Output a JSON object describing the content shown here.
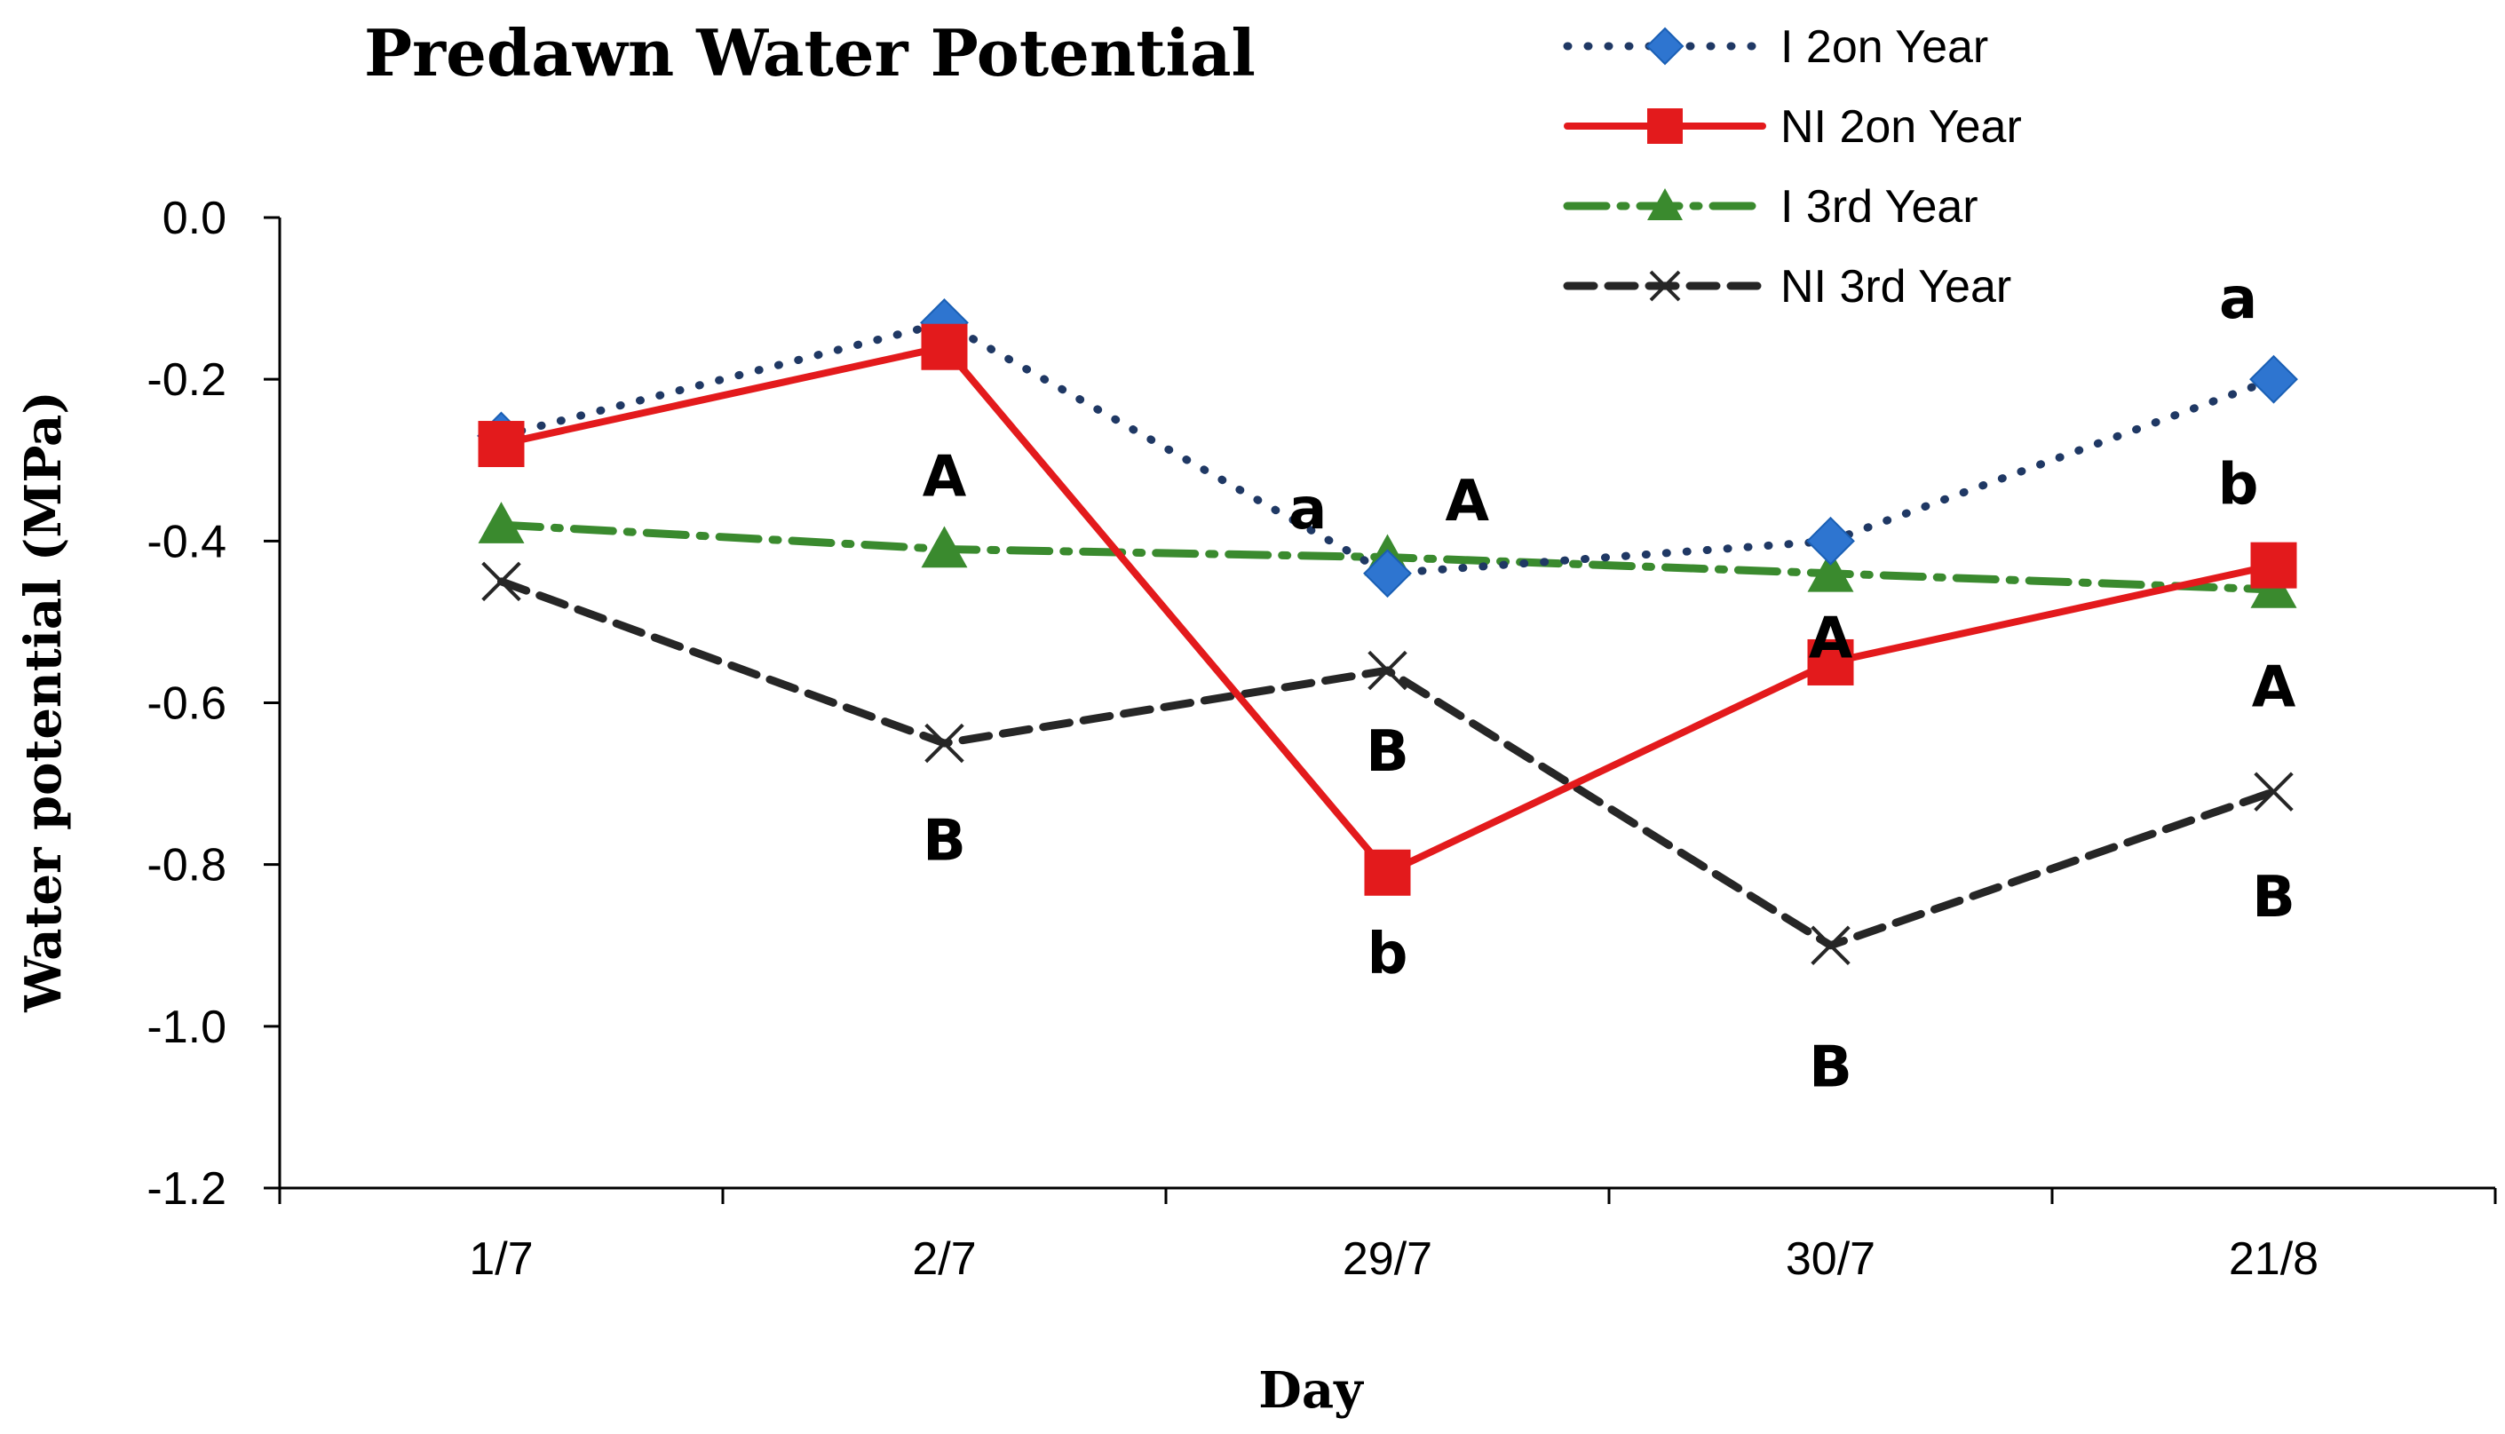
{
  "chart_data": {
    "type": "line",
    "title": "Predawn Water Potential",
    "xlabel": "Day",
    "ylabel": "Water  potential (MPa)",
    "categories": [
      "1/7",
      "2/7",
      "29/7",
      "30/7",
      "21/8"
    ],
    "ylim": [
      -1.2,
      0.0
    ],
    "yticks": [
      0.0,
      -0.2,
      -0.4,
      -0.6,
      -0.8,
      -1.0,
      -1.2
    ],
    "ytick_labels": [
      "0.0",
      "-0.2",
      "-0.4",
      "-0.6",
      "-0.8",
      "-1.0",
      "-1.2"
    ],
    "grid": false,
    "legend_position": "top-right",
    "series": [
      {
        "name": "I 2on Year",
        "values": [
          -0.27,
          -0.13,
          -0.44,
          -0.4,
          -0.2
        ],
        "color": "#1f3864",
        "marker_color": "#2e75d0",
        "marker": "diamond",
        "line_style": "dotted"
      },
      {
        "name": "NI 2on Year",
        "values": [
          -0.28,
          -0.16,
          -0.81,
          -0.55,
          -0.43
        ],
        "color": "#e31a1c",
        "marker_color": "#e31a1c",
        "marker": "square",
        "line_style": "solid"
      },
      {
        "name": "I 3rd Year",
        "values": [
          -0.38,
          -0.41,
          -0.42,
          -0.44,
          -0.46
        ],
        "color": "#3a8a2e",
        "marker_color": "#3a8a2e",
        "marker": "triangle",
        "line_style": "dashdot"
      },
      {
        "name": "NI 3rd Year",
        "values": [
          -0.45,
          -0.65,
          -0.56,
          -0.9,
          -0.71
        ],
        "color": "#262626",
        "marker_color": "#262626",
        "marker": "x",
        "line_style": "dashed"
      }
    ],
    "annotations": [
      {
        "text": "A",
        "category": "2/7",
        "y": -0.32
      },
      {
        "text": "B",
        "category": "2/7",
        "y": -0.77
      },
      {
        "text": "a",
        "category": "29/7",
        "y": -0.36,
        "dx": -0.18
      },
      {
        "text": "A",
        "category": "29/7",
        "y": -0.35,
        "dx": 0.18
      },
      {
        "text": "B",
        "category": "29/7",
        "y": -0.66
      },
      {
        "text": "b",
        "category": "29/7",
        "y": -0.91
      },
      {
        "text": "A",
        "category": "30/7",
        "y": -0.52
      },
      {
        "text": "B",
        "category": "30/7",
        "y": -1.05
      },
      {
        "text": "a",
        "category": "21/8",
        "y": -0.1,
        "dx": -0.08
      },
      {
        "text": "b",
        "category": "21/8",
        "y": -0.33,
        "dx": -0.08
      },
      {
        "text": "A",
        "category": "21/8",
        "y": -0.58
      },
      {
        "text": "B",
        "category": "21/8",
        "y": -0.84
      }
    ]
  }
}
